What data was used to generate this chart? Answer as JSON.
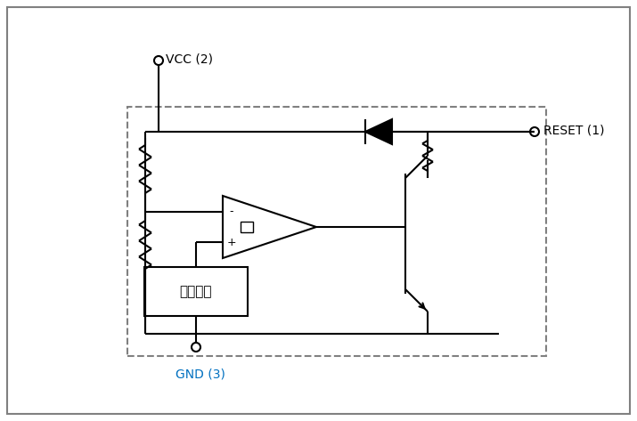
{
  "bg_color": "#ffffff",
  "fig_border_color": "#808080",
  "line_color": "#000000",
  "dashed_color": "#808080",
  "gnd_label_color": "#0070c0",
  "vcc_label": "VCC (2)",
  "gnd_label": "GND (3)",
  "reset_label": "RESET (1)",
  "voltage_text": "比较电压",
  "minus_sign": "-",
  "plus_sign": "+"
}
